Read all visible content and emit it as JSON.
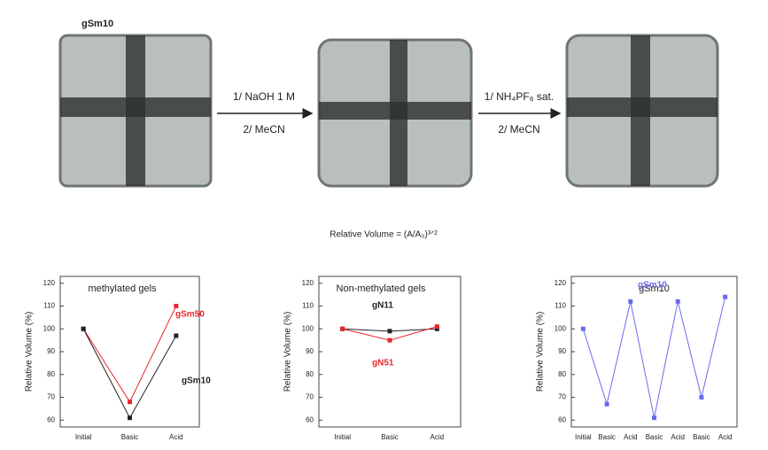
{
  "scheme": {
    "top_label": "gSm10",
    "arrows": [
      {
        "top": "1/ NaOH 1 M",
        "bottom": "2/ MeCN"
      },
      {
        "top": "1/ NH₄PF₆ sat.",
        "bottom": "2/ MeCN"
      }
    ]
  },
  "equation": "Relative Volume = (A/A₀)³ᐟ²",
  "chart_data": [
    {
      "type": "line",
      "title": "methylated gels",
      "y_label": "Relative Volume (%)",
      "categories": [
        "Initial",
        "Basic",
        "Acid"
      ],
      "series": [
        {
          "name": "gSm50",
          "color": "#e8262b",
          "values": [
            100,
            68,
            110
          ]
        },
        {
          "name": "gSm10",
          "color": "#222222",
          "values": [
            100,
            61,
            97
          ]
        }
      ],
      "ylim": [
        57,
        123
      ],
      "yticks": [
        60,
        70,
        80,
        90,
        100,
        110,
        120
      ]
    },
    {
      "type": "line",
      "title": "Non-methylated gels",
      "y_label": "Relative Volume (%)",
      "categories": [
        "Initial",
        "Basic",
        "Acid"
      ],
      "series": [
        {
          "name": "gN11",
          "color": "#222222",
          "values": [
            100,
            99,
            100
          ]
        },
        {
          "name": "gN51",
          "color": "#e8262b",
          "values": [
            100,
            95,
            101
          ]
        }
      ],
      "ylim": [
        57,
        123
      ],
      "yticks": [
        60,
        70,
        80,
        90,
        100,
        110,
        120
      ]
    },
    {
      "type": "line",
      "title": "gSm10",
      "y_label": "Relative Volume (%)",
      "categories": [
        "Initial",
        "Basic",
        "Acid",
        "Basic",
        "Acid",
        "Basic",
        "Acid"
      ],
      "series": [
        {
          "name": "gSm10",
          "color": "#6a6af0",
          "values": [
            100,
            67,
            112,
            61,
            112,
            70,
            114
          ]
        }
      ],
      "ylim": [
        57,
        123
      ],
      "yticks": [
        60,
        70,
        80,
        90,
        100,
        110,
        120
      ]
    }
  ]
}
